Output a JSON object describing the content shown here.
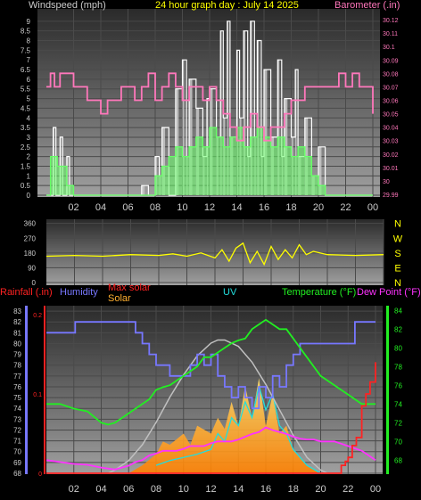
{
  "title": "24 hour graph day : July 14 2025",
  "colors": {
    "title": "#ffff00",
    "wind": "#ffffff",
    "gust": "#c8c8c8",
    "avg_wind": "#66ff66",
    "baro": "#ff77bb",
    "dir": "#ffff00",
    "rain": "#ff2222",
    "humidity": "#7777ff",
    "maxsolar": "#c0c0c0",
    "solar": "#ffb030",
    "uv": "#22dddd",
    "temp": "#22ee22",
    "dew": "#ff33ff"
  },
  "chart_data": [
    {
      "type": "line",
      "left_label": "Windspeed (mph)",
      "right_label": "Barometer (.in)",
      "x_ticks": [
        "02",
        "04",
        "06",
        "08",
        "10",
        "12",
        "14",
        "16",
        "18",
        "20",
        "22",
        "00"
      ],
      "left_ticks": [
        "0",
        "0.5",
        "1",
        "1.5",
        "2",
        "2.5",
        "3",
        "3.5",
        "4",
        "4.5",
        "5",
        "5.5",
        "6",
        "6.5",
        "7",
        "7.5",
        "8",
        "8.5",
        "9"
      ],
      "right_ticks": [
        "29.99",
        "30",
        "30.01",
        "30.02",
        "30.03",
        "30.04",
        "30.05",
        "30.06",
        "30.07",
        "30.08",
        "30.09",
        "30.1",
        "30.11",
        "30.12"
      ],
      "x_range": [
        0,
        24
      ],
      "left_range": [
        0,
        9.5
      ],
      "right_range": [
        29.988,
        30.128
      ],
      "series": [
        {
          "name": "wind_gust",
          "x": [
            0,
            0.5,
            0.7,
            1,
            1.2,
            1.5,
            1.7,
            2,
            6,
            7,
            7.5,
            8,
            8.3,
            8.5,
            9,
            9.5,
            10,
            10.3,
            10.5,
            11,
            11.5,
            11.8,
            12,
            12.5,
            12.8,
            13,
            13.3,
            13.5,
            14,
            14.2,
            14.5,
            14.8,
            15,
            15.3,
            15.5,
            15.8,
            16,
            16.5,
            17,
            17.3,
            17.5,
            18,
            18.3,
            18.5,
            19,
            19.5,
            20,
            20.5,
            24
          ],
          "y": [
            0,
            3.5,
            0,
            3,
            0,
            2,
            0,
            0,
            0,
            0.5,
            0,
            2,
            1,
            3.5,
            0,
            5.5,
            7,
            2,
            6,
            4.5,
            2,
            5,
            5.5,
            3,
            8.5,
            4,
            9,
            3,
            7.5,
            4,
            8.5,
            2,
            9,
            3,
            8,
            2,
            6.5,
            3,
            7,
            2,
            5,
            3,
            6.5,
            2,
            4,
            1,
            2.5,
            0,
            0
          ]
        },
        {
          "name": "avg_wind",
          "x": [
            0,
            0.3,
            0.8,
            1.5,
            2,
            7.5,
            8,
            8.5,
            9,
            9.5,
            10,
            10.5,
            11,
            11.5,
            12,
            12.5,
            13,
            13.5,
            14,
            14.5,
            15,
            15.5,
            16,
            16.5,
            17,
            17.5,
            18,
            18.5,
            19,
            19.5,
            20,
            20.5,
            24
          ],
          "y": [
            0,
            2,
            1.5,
            0.5,
            0,
            0,
            1,
            1.5,
            2,
            2.5,
            2,
            2.5,
            3,
            2.5,
            3.5,
            3,
            2.5,
            3,
            3.5,
            2.5,
            3,
            3.5,
            3,
            2.5,
            3,
            2.5,
            2,
            2.5,
            2,
            1,
            0.5,
            0,
            0
          ]
        },
        {
          "name": "barometer",
          "x": [
            0,
            0.3,
            0.6,
            1,
            1.5,
            2,
            2.5,
            3,
            3.5,
            4,
            4.5,
            5,
            5.5,
            6,
            6.5,
            7,
            7.5,
            8,
            8.5,
            9,
            9.5,
            10,
            10.5,
            11,
            11.5,
            12,
            12.5,
            13,
            13.5,
            14,
            14.5,
            15,
            15.5,
            16,
            16.5,
            17,
            17.5,
            18,
            18.5,
            19,
            19.5,
            20,
            20.5,
            21,
            21.5,
            22,
            22.5,
            23,
            23.5,
            24
          ],
          "y": [
            30.07,
            30.08,
            30.07,
            30.08,
            30.08,
            30.07,
            30.07,
            30.06,
            30.06,
            30.05,
            30.06,
            30.06,
            30.07,
            30.07,
            30.06,
            30.07,
            30.08,
            30.06,
            30.07,
            30.08,
            30.07,
            30.06,
            30.07,
            30.07,
            30.06,
            30.07,
            30.06,
            30.05,
            30.04,
            30.03,
            30.04,
            30.05,
            30.04,
            30.03,
            30.04,
            30.04,
            30.05,
            30.06,
            30.06,
            30.07,
            30.07,
            30.07,
            30.07,
            30.07,
            30.08,
            30.07,
            30.08,
            30.07,
            30.07,
            30.05
          ]
        }
      ]
    },
    {
      "type": "line",
      "series_name": "wind direction",
      "y_ticks": [
        "360",
        "270",
        "180",
        "90",
        "0"
      ],
      "compass": [
        "N",
        "W",
        "S",
        "E",
        "N"
      ],
      "y_range": [
        0,
        380
      ],
      "x_range": [
        0,
        24
      ],
      "x": [
        0,
        2,
        4,
        6,
        8,
        9,
        10,
        11,
        12,
        12.5,
        13,
        13.5,
        14,
        14.5,
        15,
        15.5,
        16,
        16.5,
        17,
        17.5,
        18,
        18.5,
        19,
        20,
        22,
        24
      ],
      "y": [
        160,
        165,
        160,
        170,
        165,
        175,
        160,
        180,
        150,
        200,
        130,
        210,
        240,
        120,
        190,
        110,
        220,
        140,
        200,
        150,
        230,
        170,
        190,
        170,
        165,
        170
      ]
    },
    {
      "type": "line",
      "left_labels": [
        "Rainfall (.in)",
        "Humidity",
        "Max solar",
        "Solar",
        "UV"
      ],
      "right_labels": [
        "Temperature (°F)",
        "Dew Point (°F)"
      ],
      "x_ticks": [
        "02",
        "04",
        "06",
        "08",
        "10",
        "12",
        "14",
        "16",
        "18",
        "20",
        "22",
        "00"
      ],
      "humidity_ticks": [
        "68",
        "69",
        "70",
        "71",
        "72",
        "73",
        "74",
        "75",
        "76",
        "77",
        "78",
        "79",
        "80",
        "81",
        "82",
        "83"
      ],
      "rain_ticks": [
        "0",
        "0.1",
        "0.2"
      ],
      "temp_ticks": [
        "68",
        "70",
        "72",
        "74",
        "76",
        "78",
        "80",
        "82",
        "84"
      ],
      "x_range": [
        0,
        24
      ],
      "humidity_range": [
        68,
        83.5
      ],
      "rain_range": [
        0,
        0.2
      ],
      "temp_range": [
        66.5,
        84.5
      ],
      "series": [
        {
          "name": "Humidity",
          "x": [
            0,
            2,
            2.1,
            6,
            6.5,
            7,
            7.5,
            8,
            8.5,
            9,
            9.5,
            10,
            10.5,
            11,
            11.5,
            12,
            12.5,
            13,
            13.5,
            14,
            14.5,
            15,
            15.5,
            16,
            16.5,
            17,
            17.5,
            18,
            18.5,
            19,
            19.5,
            20,
            20.5,
            21,
            21.5,
            22,
            22.5,
            24
          ],
          "y": [
            81,
            81,
            82,
            82,
            81,
            80,
            79,
            78,
            78,
            77,
            77,
            77,
            78,
            79,
            78,
            79,
            77,
            76,
            75,
            76,
            75,
            74,
            76,
            75,
            77,
            76,
            78,
            79,
            80,
            80,
            80,
            80,
            80,
            80,
            80,
            80,
            82,
            82
          ]
        },
        {
          "name": "Temperature",
          "x": [
            0,
            1,
            2,
            3,
            4,
            4.5,
            5,
            5.5,
            6,
            6.5,
            7,
            7.5,
            8,
            8.5,
            9,
            9.5,
            10,
            10.5,
            11,
            11.5,
            12,
            12.5,
            13,
            13.5,
            14,
            14.5,
            15,
            15.5,
            16,
            16.5,
            17,
            17.5,
            18,
            18.5,
            19,
            19.5,
            20,
            21,
            22,
            23,
            24
          ],
          "y": [
            74,
            74,
            73.5,
            73.2,
            72,
            71.8,
            72,
            72.5,
            73,
            73.5,
            74,
            74.5,
            75.5,
            75.8,
            76,
            76.5,
            77,
            77.5,
            78,
            79,
            79,
            79.5,
            80,
            80.5,
            80.8,
            81,
            82,
            82.5,
            83,
            82.5,
            82,
            82,
            81,
            80,
            79,
            78,
            77,
            76,
            75,
            74,
            74
          ]
        },
        {
          "name": "Dew Point",
          "x": [
            0,
            1,
            2,
            3,
            4,
            5,
            5.5,
            6,
            6.5,
            7,
            7.5,
            8,
            8.5,
            9,
            9.5,
            10,
            10.5,
            11,
            11.5,
            12,
            12.5,
            13,
            13.5,
            14,
            14.5,
            15,
            15.5,
            16,
            16.5,
            17,
            17.5,
            18,
            18.5,
            19,
            19.5,
            20,
            21,
            22,
            23,
            24
          ],
          "y": [
            68,
            67.8,
            67.6,
            67.5,
            67.2,
            67,
            67.2,
            67.4,
            67.8,
            68,
            68.5,
            68.7,
            69,
            69,
            69,
            69.2,
            69.5,
            69.5,
            69.5,
            69.8,
            70,
            70,
            70,
            70.2,
            70.5,
            70.8,
            71,
            71.5,
            71.2,
            71,
            70.8,
            70.5,
            70.3,
            70.2,
            70.2,
            70,
            70,
            69.5,
            69,
            68
          ]
        },
        {
          "name": "Rainfall",
          "x": [
            0,
            21.3,
            21.5,
            21.8,
            22,
            22.3,
            22.6,
            23,
            23.3,
            23.6,
            24
          ],
          "y": [
            0,
            0,
            0.01,
            0.015,
            0.02,
            0.035,
            0.045,
            0.085,
            0.1,
            0.115,
            0.14
          ]
        },
        {
          "name": "Max solar",
          "x": [
            4.5,
            5,
            6,
            7,
            8,
            9,
            10,
            11,
            12,
            12.5,
            13,
            14,
            15,
            16,
            17,
            18,
            19,
            20,
            20.5
          ],
          "y": [
            0,
            0.02,
            0.08,
            0.18,
            0.32,
            0.48,
            0.62,
            0.74,
            0.82,
            0.84,
            0.84,
            0.8,
            0.7,
            0.56,
            0.4,
            0.24,
            0.1,
            0.02,
            0
          ]
        },
        {
          "name": "Solar",
          "x": [
            6,
            7,
            8,
            8.5,
            9,
            10,
            10.5,
            11,
            12,
            12.5,
            13,
            13.5,
            14,
            14.5,
            15,
            15.5,
            16,
            16.5,
            17,
            17.5,
            18,
            19,
            20
          ],
          "y": [
            0,
            0.05,
            0.12,
            0.2,
            0.18,
            0.25,
            0.18,
            0.3,
            0.25,
            0.35,
            0.28,
            0.45,
            0.3,
            0.55,
            0.35,
            0.6,
            0.3,
            0.5,
            0.25,
            0.3,
            0.15,
            0.05,
            0
          ]
        },
        {
          "name": "UV",
          "x": [
            8,
            9,
            10,
            11,
            12,
            12.5,
            13,
            13.5,
            14,
            14.5,
            15,
            15.5,
            16,
            16.5,
            17,
            17.5,
            18,
            19,
            20
          ],
          "y": [
            0.05,
            0.08,
            0.1,
            0.12,
            0.15,
            0.25,
            0.2,
            0.35,
            0.3,
            0.45,
            0.35,
            0.55,
            0.4,
            0.5,
            0.3,
            0.25,
            0.15,
            0.05,
            0
          ]
        }
      ]
    }
  ]
}
